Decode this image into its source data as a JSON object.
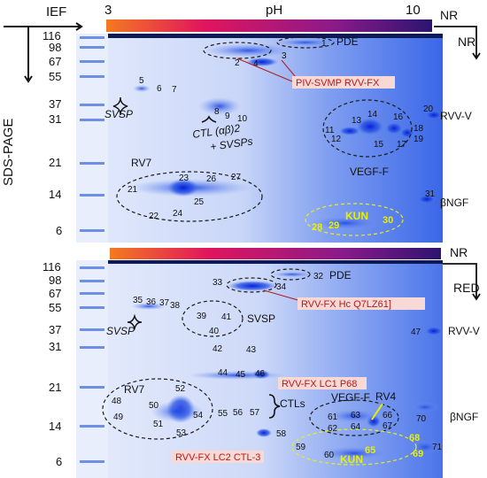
{
  "axes": {
    "ief": "IEF",
    "sds_page": "SDS-PAGE",
    "ph_label": "pH",
    "ph_low": "3",
    "ph_high": "10"
  },
  "panel_top": {
    "condition_top": "NR",
    "condition_right": "NR",
    "mw_labels": [
      "116",
      "98",
      "67",
      "55",
      "37",
      "31",
      "21",
      "14",
      "6"
    ],
    "spots": [
      "1",
      "2",
      "3",
      "4",
      "5",
      "6",
      "7",
      "8",
      "9",
      "10",
      "11",
      "12",
      "13",
      "14",
      "15",
      "16",
      "17",
      "18",
      "19",
      "20",
      "21",
      "22",
      "23",
      "24",
      "25",
      "26",
      "27",
      "28",
      "29",
      "30",
      "31"
    ],
    "labels": {
      "pde": "PDE",
      "svsp": "SVSP",
      "ctl": "CTL (αβ)2",
      "ctl_sub": "+ SVSPs",
      "rv7": "RV7",
      "rvv_v": "RVV-V",
      "vegf_f": "VEGF-F",
      "bngf": "βNGF",
      "kun": "KUN"
    },
    "callouts": {
      "piv": "PIV-SVMP RVV-FX"
    }
  },
  "panel_bottom": {
    "condition_top": "NR",
    "condition_right": "RED",
    "mw_labels": [
      "116",
      "98",
      "67",
      "55",
      "37",
      "31",
      "21",
      "14",
      "6"
    ],
    "spots": [
      "32",
      "33",
      "34",
      "35",
      "36",
      "37",
      "38",
      "39",
      "40",
      "41",
      "42",
      "43",
      "44",
      "45",
      "46",
      "47",
      "48",
      "49",
      "50",
      "51",
      "52",
      "53",
      "54",
      "55",
      "56",
      "57",
      "58",
      "59",
      "60",
      "61",
      "62",
      "63",
      "64",
      "65",
      "66",
      "67",
      "68",
      "69",
      "70",
      "71"
    ],
    "labels": {
      "pde": "PDE",
      "svsp_left": "SVSP",
      "svsp_mid": "SVSP",
      "rv7": "RV7",
      "rvv_v": "RVV-V",
      "ctls": "CTLs",
      "vegf_f": "VEGF-F",
      "rv4": "RV4",
      "bngf": "βNGF",
      "kun": "KUN"
    },
    "callouts": {
      "hc": "RVV-FX Hc Q7LZ61]",
      "lc1": "RVV-FX LC1 P68",
      "lc2": "RVV-FX LC2 CTL-3"
    }
  },
  "colors": {
    "gel_bg": "#d9e3fb",
    "gel_blue": "#2f5fe6",
    "spot_dark": "#0a2ee0",
    "callout_bg": "#f9d9d6",
    "callout_text": "#b11b1b",
    "kun_yellow": "#e8f000",
    "ph_start": "#f47a1f",
    "ph_mid": "#e0155e",
    "ph_end": "#2c1470"
  }
}
